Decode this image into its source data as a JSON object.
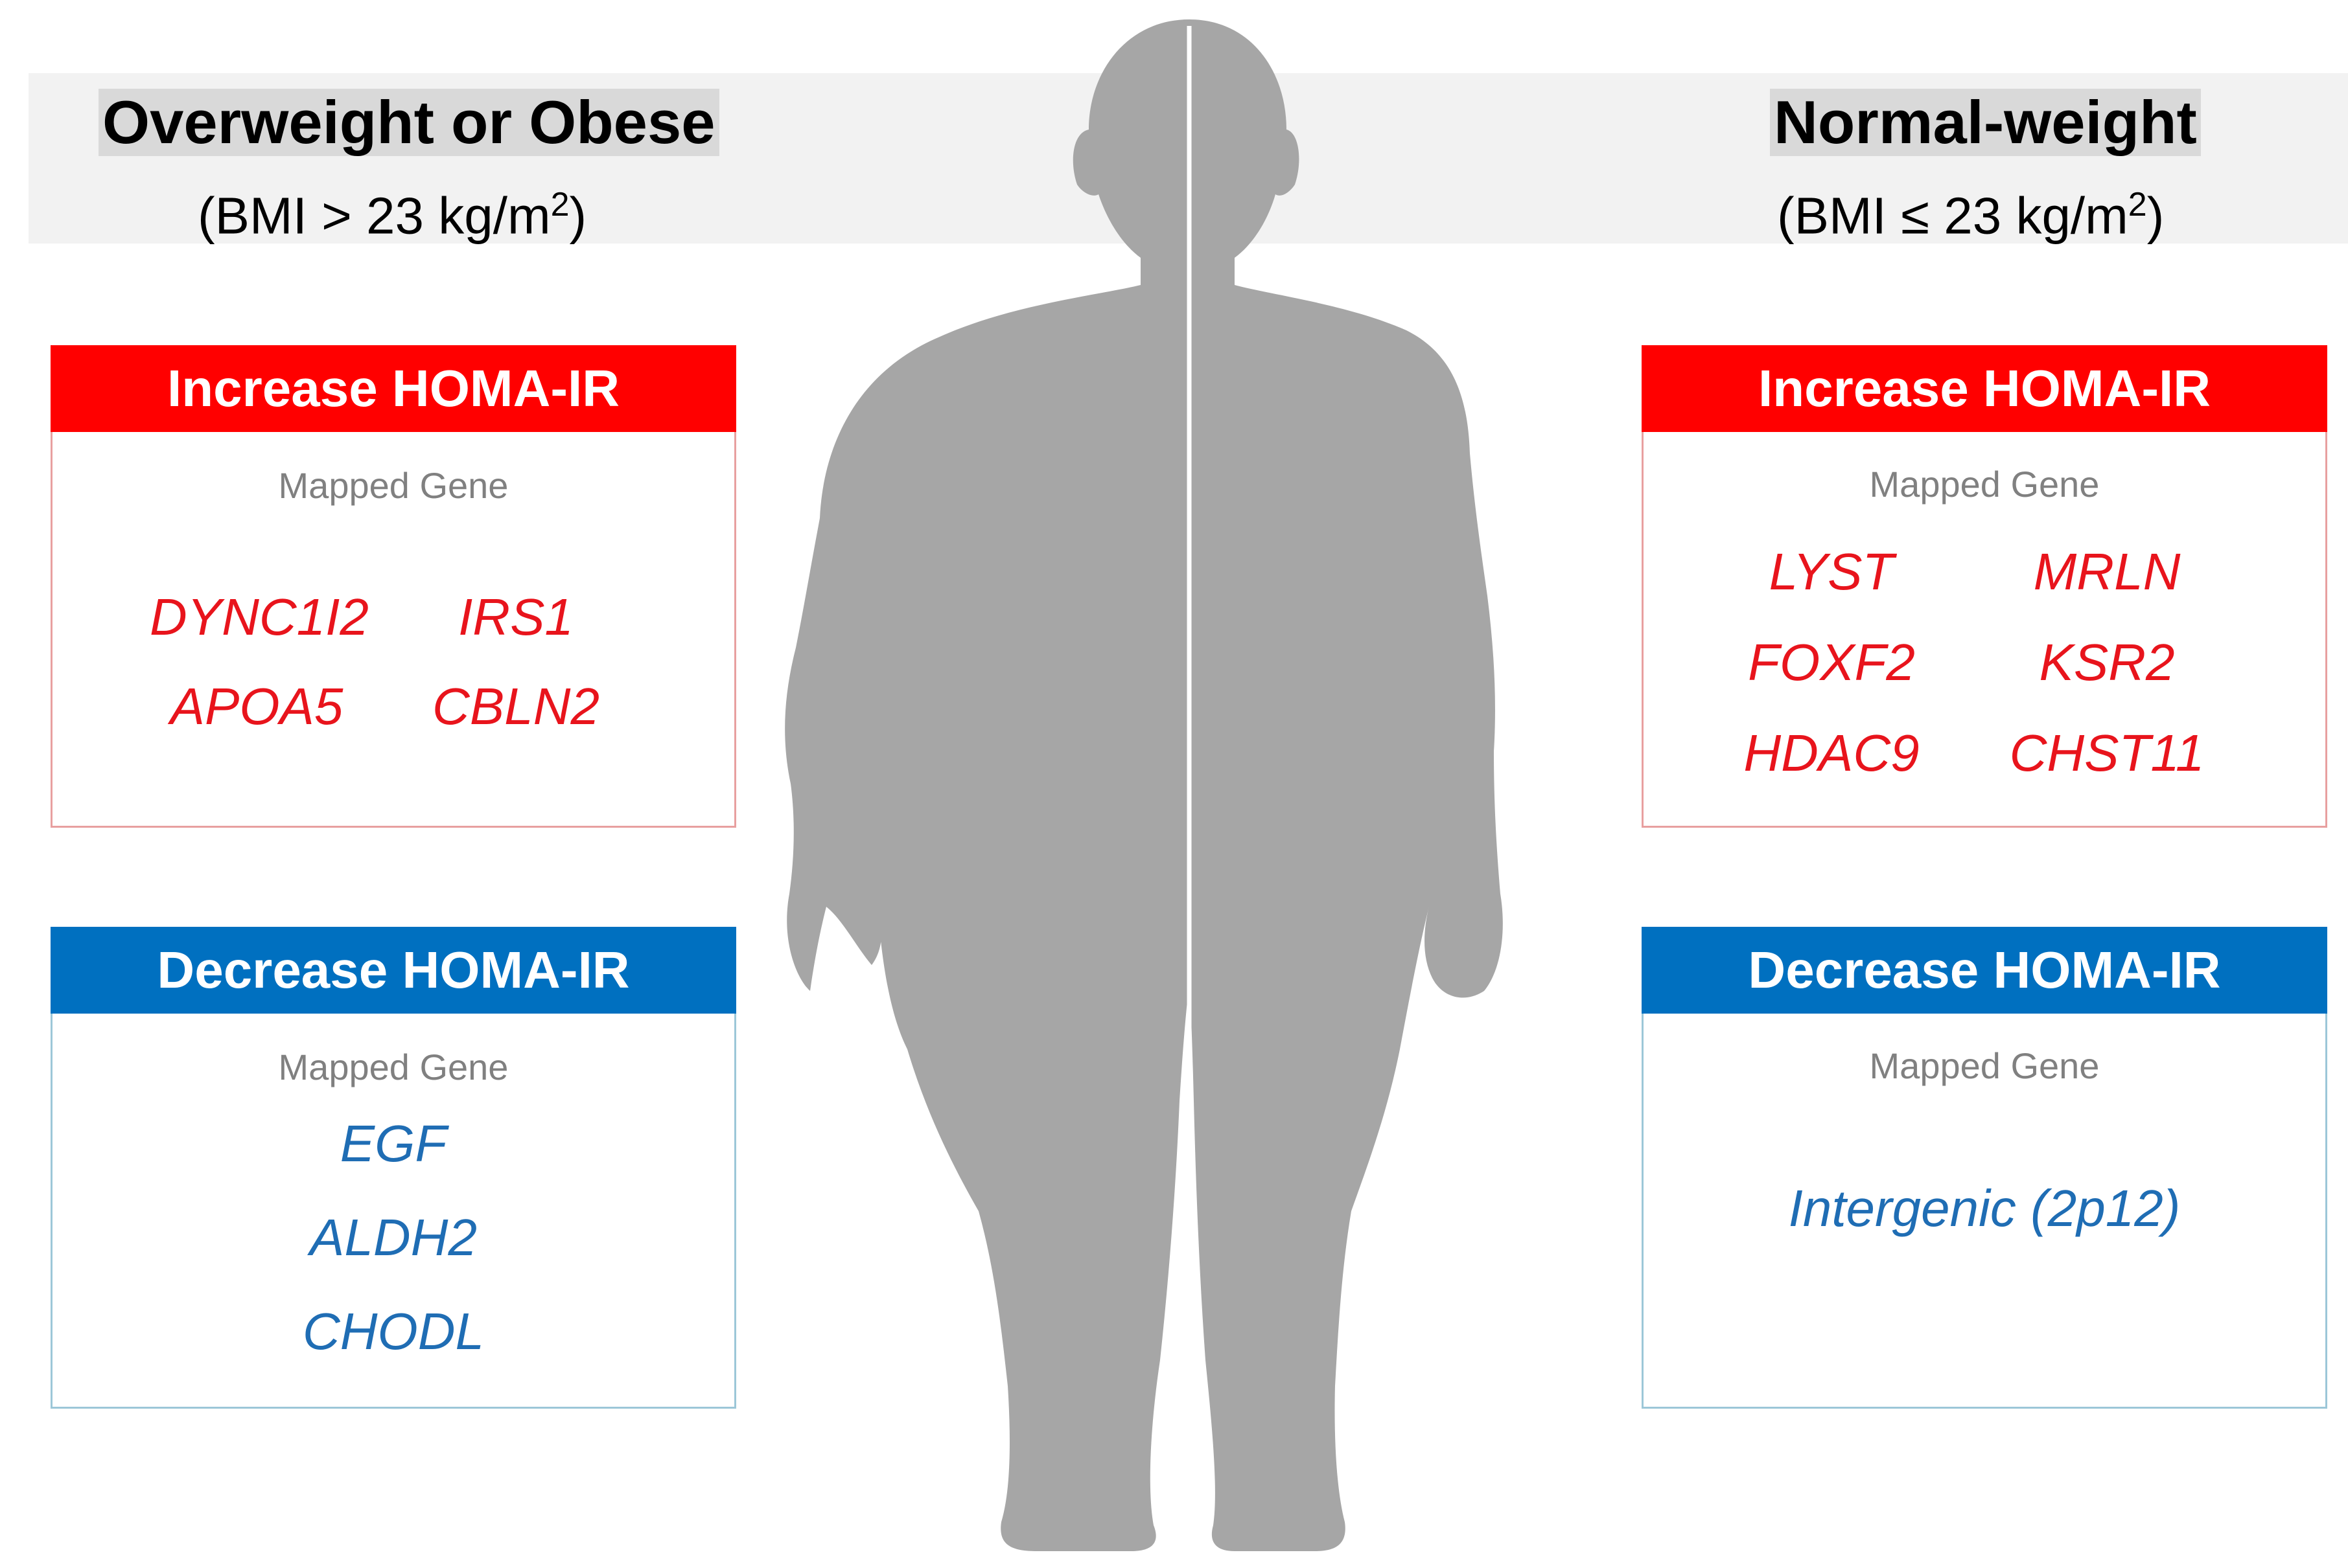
{
  "groups": {
    "left": {
      "title": "Overweight or Obese",
      "bmi_text": "(BMI > 23 kg/m",
      "bmi_exp": "2",
      "bmi_close": ")"
    },
    "right": {
      "title": "Normal-weight",
      "bmi_text": "(BMI ≤ 23 kg/m",
      "bmi_exp": "2",
      "bmi_close": ")"
    }
  },
  "panels": {
    "left_increase": {
      "header": "Increase HOMA-IR",
      "label": "Mapped Gene",
      "genes": [
        "DYNC1I2",
        "IRS1",
        "APOA5",
        "CBLN2"
      ]
    },
    "left_decrease": {
      "header": "Decrease HOMA-IR",
      "label": "Mapped Gene",
      "genes": [
        "EGF",
        "ALDH2",
        "CHODL"
      ]
    },
    "right_increase": {
      "header": "Increase HOMA-IR",
      "label": "Mapped Gene",
      "genes": [
        "LYST",
        "MRLN",
        "FOXF2",
        "KSR2",
        "HDAC9",
        "CHST11"
      ]
    },
    "right_decrease": {
      "header": "Decrease HOMA-IR",
      "label": "Mapped Gene",
      "genes": [
        "Intergenic (2p12)"
      ]
    }
  },
  "colors": {
    "increase": "#ff0000",
    "decrease": "#0070c0",
    "increase_gene": "#e8141c",
    "decrease_gene": "#1f6db4",
    "silhouette": "#a6a6a6",
    "header_band": "#f2f2f2"
  },
  "icons": {
    "figure": "human-silhouette-icon"
  }
}
